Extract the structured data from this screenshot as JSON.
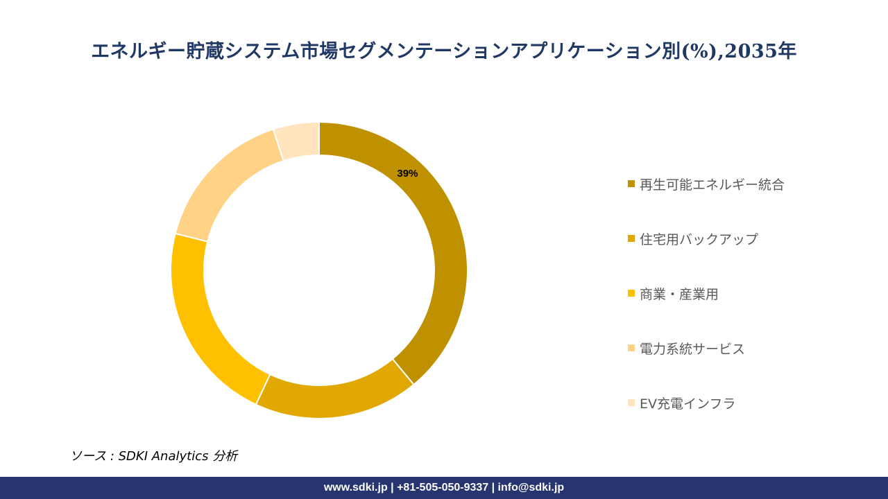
{
  "title": "エネルギー貯蔵システム市場セグメンテーションアプリケーション別(%),2035年",
  "source": "ソース : SDKI Analytics  分析",
  "footer": "www.sdki.jp | +81-505-050-9337 | info@sdki.jp",
  "chart_data": {
    "type": "pie",
    "title": "エネルギー貯蔵システム市場セグメンテーションアプリケーション別(%),2035年",
    "unit": "%",
    "legend_position": "right",
    "categories": [
      "再生可能エネルギー統合",
      "住宅用バックアップ",
      "商業・産業用",
      "電力系統サービス",
      "EV充電インフラ"
    ],
    "values": [
      39,
      18,
      22,
      16,
      5
    ],
    "colors": [
      "#bf9000",
      "#e0a800",
      "#ffc000",
      "#ffd285",
      "#ffe4bd"
    ],
    "data_labels": [
      "39%",
      "",
      "",
      "",
      ""
    ]
  }
}
